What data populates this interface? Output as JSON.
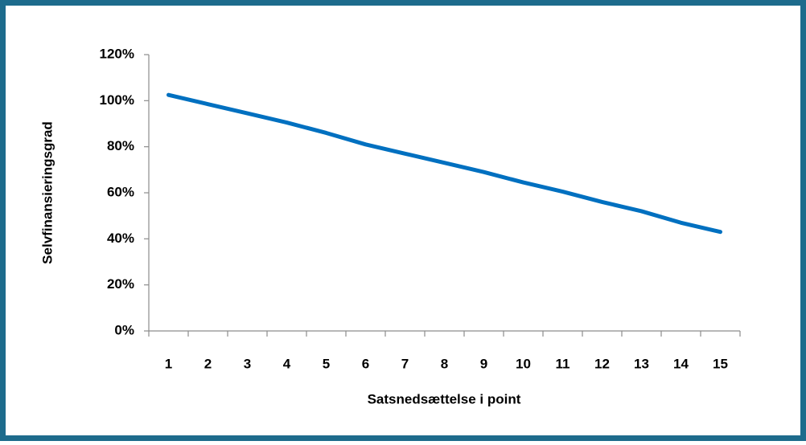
{
  "chart_data": {
    "type": "line",
    "x_label": "Satsnedsættelse i point",
    "y_label": "Selvfinansieringsgrad",
    "categories": [
      "1",
      "2",
      "3",
      "4",
      "5",
      "6",
      "7",
      "8",
      "9",
      "10",
      "11",
      "12",
      "13",
      "14",
      "15"
    ],
    "values": [
      102.5,
      98.5,
      94.5,
      90.5,
      86,
      81,
      77,
      73,
      69,
      64.5,
      60.5,
      56,
      52,
      47,
      43
    ],
    "color": "#0070c0",
    "ylim": [
      0,
      120
    ],
    "yticks": [
      {
        "value": 0,
        "label": "0%"
      },
      {
        "value": 20,
        "label": "20%"
      },
      {
        "value": 40,
        "label": "40%"
      },
      {
        "value": 60,
        "label": "60%"
      },
      {
        "value": 80,
        "label": "80%"
      },
      {
        "value": 100,
        "label": "100%"
      },
      {
        "value": 120,
        "label": "120%"
      }
    ]
  }
}
